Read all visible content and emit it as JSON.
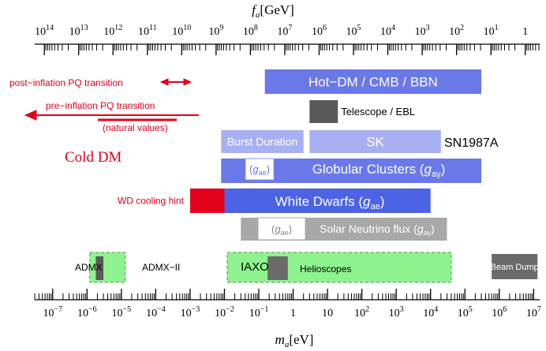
{
  "chart_data": {
    "type": "bar",
    "top_axis": {
      "label_symbol": "f",
      "label_sub": "a",
      "label_unit": "[GeV]",
      "ticks": [
        {
          "value_gev": 100000000000000.0,
          "base": "10",
          "exp": "14"
        },
        {
          "value_gev": 10000000000000.0,
          "base": "10",
          "exp": "13"
        },
        {
          "value_gev": 1000000000000.0,
          "base": "10",
          "exp": "12"
        },
        {
          "value_gev": 100000000000.0,
          "base": "10",
          "exp": "11"
        },
        {
          "value_gev": 10000000000.0,
          "base": "10",
          "exp": "10"
        },
        {
          "value_gev": 1000000000.0,
          "base": "10",
          "exp": "9"
        },
        {
          "value_gev": 100000000.0,
          "base": "10",
          "exp": "8"
        },
        {
          "value_gev": 10000000.0,
          "base": "10",
          "exp": "7"
        },
        {
          "value_gev": 1000000.0,
          "base": "10",
          "exp": "6"
        },
        {
          "value_gev": 100000.0,
          "base": "10",
          "exp": "5"
        },
        {
          "value_gev": 10000.0,
          "base": "10",
          "exp": "4"
        },
        {
          "value_gev": 1000.0,
          "base": "10",
          "exp": "3"
        },
        {
          "value_gev": 100.0,
          "base": "10",
          "exp": "2"
        },
        {
          "value_gev": 10.0,
          "base": "10",
          "exp": "1"
        },
        {
          "value_gev": 1,
          "base": "1",
          "exp": ""
        }
      ]
    },
    "bottom_axis": {
      "label_symbol": "m",
      "label_sub": "a",
      "label_unit": "[eV]",
      "scale": "log",
      "xlim_ev": [
        3e-08,
        15000000.0
      ],
      "ticks": [
        {
          "value_ev": 1e-07,
          "base": "10",
          "exp": "−7"
        },
        {
          "value_ev": 1e-06,
          "base": "10",
          "exp": "−6"
        },
        {
          "value_ev": 1e-05,
          "base": "10",
          "exp": "−5"
        },
        {
          "value_ev": 0.0001,
          "base": "10",
          "exp": "−4"
        },
        {
          "value_ev": 0.001,
          "base": "10",
          "exp": "−3"
        },
        {
          "value_ev": 0.01,
          "base": "10",
          "exp": "−2"
        },
        {
          "value_ev": 0.1,
          "base": "10",
          "exp": "−1"
        },
        {
          "value_ev": 1,
          "base": "1",
          "exp": ""
        },
        {
          "value_ev": 10,
          "base": "10",
          "exp": ""
        },
        {
          "value_ev": 100.0,
          "base": "10",
          "exp": "2"
        },
        {
          "value_ev": 1000.0,
          "base": "10",
          "exp": "3"
        },
        {
          "value_ev": 10000.0,
          "base": "10",
          "exp": "4"
        },
        {
          "value_ev": 100000.0,
          "base": "10",
          "exp": "5"
        },
        {
          "value_ev": 1000000.0,
          "base": "10",
          "exp": "6"
        },
        {
          "value_ev": 10000000.0,
          "base": "10",
          "exp": "7"
        }
      ]
    },
    "bars": [
      {
        "id": "hot-dm",
        "label": "Hot−DM / CMB / BBN",
        "x_ev": [
          0.15,
          300000.0
        ],
        "row": 1,
        "color": "#6a78e8",
        "text_color": "#ffffff",
        "label_pos": "center"
      },
      {
        "id": "telescope",
        "label": "Telescope / EBL",
        "x_ev": [
          3,
          20
        ],
        "row": 2,
        "color": "#595959",
        "text_color": "#000000",
        "label_pos": "right"
      },
      {
        "id": "burst-duration",
        "label": "Burst Duration",
        "x_ev": [
          0.008,
          2
        ],
        "row": 3,
        "color": "#a7b0f2",
        "text_color": "#ffffff",
        "label_pos": "center"
      },
      {
        "id": "sk",
        "label": "SK",
        "x_ev": [
          3,
          20000.0
        ],
        "row": 3,
        "color": "#a7b0f2",
        "text_color": "#ffffff",
        "label_pos": "center"
      },
      {
        "id": "globular-clusters",
        "label": "Globular Clusters",
        "x_ev": [
          0.008,
          300000.0
        ],
        "row": 4,
        "color": "#6a78e8",
        "text_color": "#ffffff",
        "label_pos": "center"
      },
      {
        "id": "wd-cooling-hint",
        "label": "WD cooling hint",
        "x_ev": [
          0.001,
          0.01
        ],
        "row": 5,
        "color": "#e2001a",
        "text_color": "#e2001a",
        "label_pos": "left"
      },
      {
        "id": "white-dwarfs",
        "label": "White Dwarfs",
        "x_ev": [
          0.01,
          10000.0
        ],
        "row": 5,
        "color": "#4c63e5",
        "text_color": "#ffffff",
        "label_pos": "center"
      },
      {
        "id": "solar-neutrino",
        "label": "Solar Neutrino flux",
        "x_ev": [
          0.03,
          30000.0
        ],
        "row": 6,
        "color": "#a8a8a8",
        "text_color": "#ffffff",
        "label_pos": "center"
      },
      {
        "id": "beam-dump",
        "label": "Beam Dump",
        "x_ev": [
          600000.0,
          13000000.0
        ],
        "row": 7,
        "color": "#6a6a6a",
        "text_color": "#ffffff",
        "label_pos": "center"
      }
    ],
    "annotations": {
      "sn1987a": "SN1987A",
      "cold_dm": "Cold DM",
      "post_inflation": "post−inflation PQ transition",
      "pre_inflation": "pre−inflation PQ transition",
      "natural_values": "(natural values)",
      "gae": "g",
      "gae_sub": "ae",
      "gag_sub": "aγ",
      "globular_label": "Globular Clusters (",
      "white_dwarfs_label": "White Dwarfs (",
      "solar_label": "Solar Neutrino flux (",
      "close_paren": ")",
      "admx": "ADMX",
      "admx_ii": "ADMX−II",
      "iaxo": "IAXO",
      "helioscopes": "Helioscopes"
    },
    "experiments": [
      {
        "id": "admx-ii",
        "x_ev": [
          1.2e-06,
          1.3e-05
        ],
        "color": "#8ef28e",
        "style": "dashed"
      },
      {
        "id": "admx",
        "x_ev": [
          1.8e-06,
          3e-06
        ],
        "color": "#5a5a5a",
        "style": "solid"
      },
      {
        "id": "helioscopes",
        "x_ev": [
          0.012,
          40000.0
        ],
        "color": "#8ef28e",
        "style": "dashed"
      },
      {
        "id": "iaxo-solid",
        "x_ev": [
          0.18,
          0.7
        ],
        "color": "#6a6a6a",
        "style": "solid"
      }
    ],
    "colors": {
      "red": "#e2001a",
      "axis": "#000000"
    }
  }
}
